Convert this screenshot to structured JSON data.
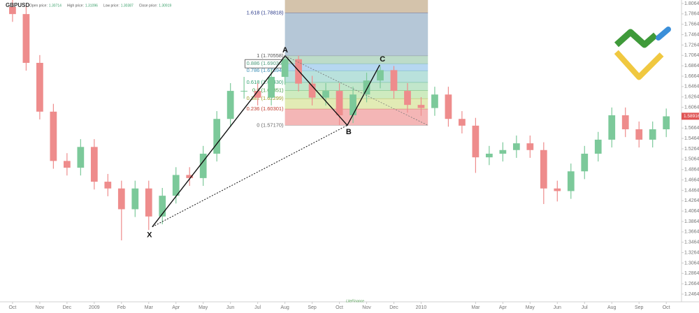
{
  "chart_data": {
    "type": "candlestick",
    "title": "GBPUSD",
    "header": [
      {
        "label": "Open price:",
        "value": 1.30714
      },
      {
        "label": "High price:",
        "value": 1.31096
      },
      {
        "label": "Low price:",
        "value": 1.30387
      },
      {
        "label": "Close price:",
        "value": 1.30919
      }
    ],
    "x": [
      0,
      0.5,
      1,
      1.5,
      2,
      2.5,
      3,
      3.5,
      4,
      4.5,
      5,
      5.5,
      6,
      6.5,
      7,
      7.5,
      8,
      8.5,
      9,
      9.5,
      10,
      10.5,
      11,
      11.5,
      12,
      12.5,
      13,
      13.5,
      14,
      14.5,
      15,
      15.5,
      16,
      16.5,
      17,
      17.5,
      18,
      18.5,
      19,
      19.5,
      20,
      20.5,
      21,
      21.5,
      22,
      22.5,
      23,
      23.5,
      24
    ],
    "open": [
      1.8,
      1.786,
      1.692,
      1.598,
      1.503,
      1.49,
      1.53,
      1.463,
      1.45,
      1.41,
      1.45,
      1.396,
      1.436,
      1.476,
      1.47,
      1.517,
      1.584,
      1.638,
      1.638,
      1.625,
      1.665,
      1.699,
      1.652,
      1.625,
      1.638,
      1.591,
      1.631,
      1.658,
      1.678,
      1.638,
      1.611,
      1.605,
      1.631,
      1.584,
      1.571,
      1.51,
      1.517,
      1.524,
      1.537,
      1.524,
      1.45,
      1.445,
      1.483,
      1.517,
      1.544,
      1.591,
      1.564,
      1.544,
      1.564
    ],
    "high": [
      1.815,
      1.801,
      1.707,
      1.613,
      1.518,
      1.545,
      1.545,
      1.478,
      1.465,
      1.465,
      1.465,
      1.451,
      1.491,
      1.491,
      1.532,
      1.599,
      1.653,
      1.665,
      1.653,
      1.68,
      1.706,
      1.706,
      1.667,
      1.653,
      1.653,
      1.646,
      1.673,
      1.686,
      1.686,
      1.653,
      1.626,
      1.646,
      1.646,
      1.599,
      1.586,
      1.532,
      1.539,
      1.552,
      1.552,
      1.539,
      1.465,
      1.498,
      1.532,
      1.559,
      1.606,
      1.606,
      1.579,
      1.579,
      1.604
    ],
    "low": [
      1.771,
      1.677,
      1.583,
      1.488,
      1.475,
      1.475,
      1.448,
      1.435,
      1.35,
      1.395,
      1.37,
      1.381,
      1.421,
      1.455,
      1.455,
      1.502,
      1.569,
      1.623,
      1.61,
      1.61,
      1.65,
      1.637,
      1.61,
      1.61,
      1.572,
      1.576,
      1.616,
      1.643,
      1.623,
      1.596,
      1.59,
      1.59,
      1.569,
      1.556,
      1.48,
      1.495,
      1.502,
      1.509,
      1.509,
      1.42,
      1.425,
      1.43,
      1.468,
      1.502,
      1.529,
      1.549,
      1.529,
      1.529,
      1.549
    ],
    "close": [
      1.786,
      1.692,
      1.598,
      1.503,
      1.49,
      1.53,
      1.463,
      1.45,
      1.41,
      1.45,
      1.396,
      1.436,
      1.476,
      1.47,
      1.517,
      1.584,
      1.638,
      1.638,
      1.625,
      1.665,
      1.699,
      1.652,
      1.625,
      1.638,
      1.591,
      1.631,
      1.658,
      1.678,
      1.638,
      1.611,
      1.605,
      1.631,
      1.584,
      1.571,
      1.51,
      1.517,
      1.524,
      1.537,
      1.524,
      1.45,
      1.445,
      1.483,
      1.517,
      1.544,
      1.591,
      1.564,
      1.544,
      1.564,
      1.589
    ],
    "up_color": "#7cc99a",
    "down_color": "#ee8c8c",
    "xlim": [
      -0.46,
      24.56
    ],
    "xticks": [
      {
        "value": 0,
        "label": "Oct"
      },
      {
        "value": 1,
        "label": "Nov"
      },
      {
        "value": 2,
        "label": "Dec"
      },
      {
        "value": 3,
        "label": "2009"
      },
      {
        "value": 4,
        "label": "Feb"
      },
      {
        "value": 5,
        "label": "Mar"
      },
      {
        "value": 6,
        "label": "Apr"
      },
      {
        "value": 7,
        "label": "May"
      },
      {
        "value": 8,
        "label": "Jun"
      },
      {
        "value": 9,
        "label": "Jul"
      },
      {
        "value": 10,
        "label": "Aug"
      },
      {
        "value": 11,
        "label": "Sep"
      },
      {
        "value": 12,
        "label": "Oct"
      },
      {
        "value": 13,
        "label": "Nov"
      },
      {
        "value": 14,
        "label": "Dec"
      },
      {
        "value": 15,
        "label": "2010"
      },
      {
        "value": 17,
        "label": "Mar"
      },
      {
        "value": 18,
        "label": "Apr"
      },
      {
        "value": 19,
        "label": "May"
      },
      {
        "value": 20,
        "label": "Jun"
      },
      {
        "value": 21,
        "label": "Jul"
      },
      {
        "value": 22,
        "label": "Aug"
      },
      {
        "value": 23,
        "label": "Sep"
      },
      {
        "value": 24,
        "label": "Oct"
      }
    ],
    "ylim": [
      1.2316,
      1.8131
    ],
    "yticks": [
      {
        "value": 1.8064,
        "label": "1.80640"
      },
      {
        "value": 1.7864,
        "label": "1.78640"
      },
      {
        "value": 1.7664,
        "label": "1.76640"
      },
      {
        "value": 1.7464,
        "label": "1.74640"
      },
      {
        "value": 1.7264,
        "label": "1.72640"
      },
      {
        "value": 1.7064,
        "label": "1.70640"
      },
      {
        "value": 1.6864,
        "label": "1.68640"
      },
      {
        "value": 1.6664,
        "label": "1.66640"
      },
      {
        "value": 1.6464,
        "label": "1.64640"
      },
      {
        "value": 1.6264,
        "label": "1.62640"
      },
      {
        "value": 1.6064,
        "label": "1.60640"
      },
      {
        "value": 1.5864,
        "label": "1.58640"
      },
      {
        "value": 1.5664,
        "label": "1.56640"
      },
      {
        "value": 1.5464,
        "label": "1.54640"
      },
      {
        "value": 1.5264,
        "label": "1.52640"
      },
      {
        "value": 1.5064,
        "label": "1.50640"
      },
      {
        "value": 1.4864,
        "label": "1.48640"
      },
      {
        "value": 1.4664,
        "label": "1.46640"
      },
      {
        "value": 1.4464,
        "label": "1.44640"
      },
      {
        "value": 1.4264,
        "label": "1.42640"
      },
      {
        "value": 1.4064,
        "label": "1.40640"
      },
      {
        "value": 1.3864,
        "label": "1.38640"
      },
      {
        "value": 1.3664,
        "label": "1.36640"
      },
      {
        "value": 1.3464,
        "label": "1.34640"
      },
      {
        "value": 1.3264,
        "label": "1.32640"
      },
      {
        "value": 1.3064,
        "label": "1.30640"
      },
      {
        "value": 1.2864,
        "label": "1.28640"
      },
      {
        "value": 1.2664,
        "label": "1.26640"
      },
      {
        "value": 1.2464,
        "label": "1.24640"
      }
    ],
    "last_price": 1.58916,
    "last_price_color": "#e05555",
    "fibonacci": {
      "x_range": [
        10,
        15.25
      ],
      "top_color": "#cdb89c",
      "levels": [
        {
          "label": "0 (1.57170)",
          "value": 1.5717,
          "color": "#666666",
          "band_color": "#f2a9a9"
        },
        {
          "label": "0.236 (1.60301)",
          "value": 1.60301,
          "color": "#c0392b",
          "band_color": "#dde8a8"
        },
        {
          "label": "0.382 (1.62299)",
          "value": 1.62299,
          "color": "#9a9a20",
          "band_color": "#c6e8b4"
        },
        {
          "label": "0.5 (1.63851)",
          "value": 1.63851,
          "color": "#3a9a3a",
          "band_color": "#b6e2c2"
        },
        {
          "label": "0.618 (1.65430)",
          "value": 1.6543,
          "color": "#2e9e6e",
          "band_color": "#addcd6"
        },
        {
          "label": "0.786 (1.67694)",
          "value": 1.67694,
          "color": "#3a8fb7",
          "band_color": "#a9d0ee"
        },
        {
          "label": "0.886 (1.69036)",
          "value": 1.69036,
          "color": "#4a9a7a",
          "band_color": "#b1d6bf"
        },
        {
          "label": "1 (1.70558)",
          "value": 1.70558,
          "color": "#555555",
          "band_color": "#a8bdd0"
        },
        {
          "label": "1.618 (1.78818)",
          "value": 1.78818,
          "color": "#2a3a8a",
          "band_color": "#cdb89c"
        }
      ]
    },
    "pattern": {
      "points": [
        {
          "name": "X",
          "x": 5.13,
          "y": 1.376
        },
        {
          "name": "A",
          "x": 10.01,
          "y": 1.7056
        },
        {
          "name": "B",
          "x": 12.29,
          "y": 1.5717
        },
        {
          "name": "C",
          "x": 13.48,
          "y": 1.688
        }
      ]
    },
    "watermark": "LiteFinance"
  }
}
